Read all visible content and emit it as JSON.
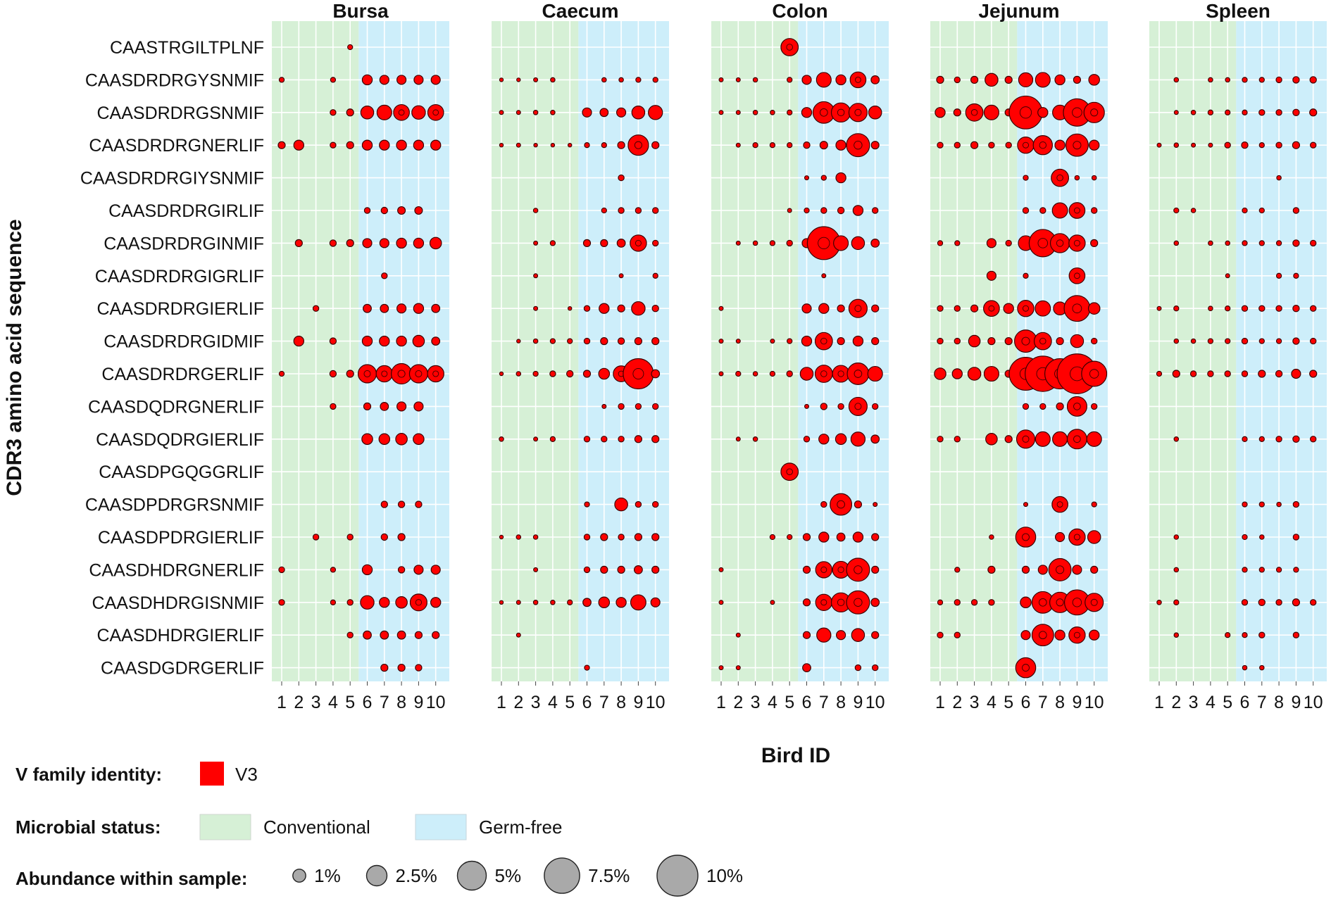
{
  "chart_data": {
    "type": "scatter",
    "subtype": "faceted bubble plot",
    "ylabel": "CDR3 amino acid sequence",
    "xlabel": "Bird ID",
    "panels": [
      "Bursa",
      "Caecum",
      "Colon",
      "Jejunum",
      "Spleen"
    ],
    "x": [
      1,
      2,
      3,
      4,
      5,
      6,
      7,
      8,
      9,
      10
    ],
    "x_tick_labels": [
      "1",
      "2",
      "3",
      "4",
      "5",
      "6",
      "7",
      "8",
      "9",
      "10"
    ],
    "sequences": [
      "CAASTRGILTPLNF",
      "CAASDRDRGYSNMIF",
      "CAASDRDRGSNMIF",
      "CAASDRDRGNERLIF",
      "CAASDRDRGIYSNMIF",
      "CAASDRDRGIRLIF",
      "CAASDRDRGINMIF",
      "CAASDRDRGIGRLIF",
      "CAASDRDRGIERLIF",
      "CAASDRDRGIDMIF",
      "CAASDRDRGERLIF",
      "CAASDQDRGNERLIF",
      "CAASDQDRGIERLIF",
      "CAASDPGQGGRLIF",
      "CAASDPDRGRSNMIF",
      "CAASDPDRGIERLIF",
      "CAASDHDRGNERLIF",
      "CAASDHDRGISNMIF",
      "CAASDHDRGIERLIF",
      "CAASDGDRGERLIF"
    ],
    "microbial_status": [
      {
        "name": "Conventional",
        "birds": [
          1,
          2,
          3,
          4,
          5
        ],
        "color": "#d6f0d6"
      },
      {
        "name": "Germ-free",
        "birds": [
          6,
          7,
          8,
          9,
          10
        ],
        "color": "#cdeefa"
      }
    ],
    "v_family": {
      "name": "V3",
      "color": "#ff0000"
    },
    "size_scale_max_percent": 10,
    "abundance_percent": {
      "Bursa": [
        [
          0,
          0,
          0,
          0,
          0.15,
          0,
          0,
          0,
          0,
          0
        ],
        [
          0.15,
          0,
          0,
          0.15,
          0,
          0.6,
          0.5,
          0.5,
          0.5,
          0.5
        ],
        [
          0,
          0,
          0,
          0.2,
          0.3,
          1.0,
          1.3,
          1.5,
          1.1,
          1.5
        ],
        [
          0.3,
          0.6,
          0,
          0.2,
          0.3,
          0.6,
          0.6,
          0.6,
          0.6,
          0.6
        ],
        [
          0,
          0,
          0,
          0,
          0,
          0,
          0,
          0,
          0,
          0
        ],
        [
          0,
          0,
          0,
          0,
          0,
          0.2,
          0.25,
          0.35,
          0.35,
          0
        ],
        [
          0,
          0.3,
          0,
          0.25,
          0.3,
          0.5,
          0.5,
          0.6,
          0.6,
          0.8
        ],
        [
          0,
          0,
          0,
          0,
          0,
          0,
          0.2,
          0,
          0,
          0
        ],
        [
          0,
          0,
          0.2,
          0,
          0,
          0.4,
          0.4,
          0.5,
          0.6,
          0.4
        ],
        [
          0,
          0.6,
          0,
          0.25,
          0,
          0.6,
          0.6,
          0.6,
          0.8,
          0.4
        ],
        [
          0.15,
          0,
          0,
          0.25,
          0.3,
          2.0,
          1.6,
          2.5,
          2.0,
          1.6
        ],
        [
          0,
          0,
          0,
          0.2,
          0,
          0.3,
          0.4,
          0.5,
          0.5,
          0
        ],
        [
          0,
          0,
          0,
          0,
          0,
          0.7,
          0.7,
          0.8,
          0.7,
          0
        ],
        [
          0,
          0,
          0,
          0,
          0,
          0,
          0,
          0,
          0,
          0
        ],
        [
          0,
          0,
          0,
          0,
          0,
          0,
          0.25,
          0.25,
          0.25,
          0
        ],
        [
          0,
          0,
          0.2,
          0,
          0.2,
          0,
          0.25,
          0.3,
          0,
          0
        ],
        [
          0.2,
          0,
          0,
          0.15,
          0,
          0.6,
          0,
          0.25,
          0.5,
          0.5
        ],
        [
          0.2,
          0,
          0,
          0.15,
          0.2,
          1.1,
          0.6,
          0.8,
          1.7,
          0.6
        ],
        [
          0,
          0,
          0,
          0,
          0.2,
          0.4,
          0.4,
          0.4,
          0.3,
          0.3
        ],
        [
          0,
          0,
          0,
          0,
          0,
          0,
          0.3,
          0.3,
          0.25,
          0
        ]
      ],
      "Caecum": [
        [
          0,
          0,
          0,
          0,
          0,
          0,
          0,
          0,
          0,
          0
        ],
        [
          0.08,
          0.08,
          0.1,
          0.12,
          0,
          0,
          0.12,
          0.12,
          0.15,
          0.15
        ],
        [
          0.1,
          0.1,
          0.12,
          0.12,
          0,
          0.5,
          0.4,
          0.5,
          1.0,
          1.2
        ],
        [
          0.08,
          0.1,
          0.08,
          0.08,
          0.08,
          0.15,
          0.15,
          0.3,
          2.5,
          0.3
        ],
        [
          0,
          0,
          0,
          0,
          0,
          0,
          0,
          0.2,
          0,
          0
        ],
        [
          0,
          0,
          0.12,
          0,
          0,
          0,
          0.15,
          0.2,
          0.2,
          0.2
        ],
        [
          0,
          0,
          0.1,
          0.15,
          0,
          0.3,
          0.3,
          0.4,
          1.6,
          0.2
        ],
        [
          0,
          0,
          0.1,
          0,
          0,
          0,
          0,
          0.1,
          0,
          0.15
        ],
        [
          0,
          0,
          0.1,
          0,
          0.08,
          0.2,
          0.6,
          0.3,
          1.1,
          0.25
        ],
        [
          0,
          0.08,
          0.12,
          0.15,
          0.15,
          0.2,
          0.3,
          0.25,
          0.3,
          0.3
        ],
        [
          0.08,
          0.12,
          0.15,
          0.2,
          0.25,
          0.3,
          0.7,
          1.5,
          5.5,
          0.4
        ],
        [
          0,
          0,
          0,
          0,
          0,
          0,
          0.1,
          0.2,
          0.2,
          0.2
        ],
        [
          0.12,
          0,
          0.1,
          0.15,
          0,
          0.2,
          0.2,
          0.2,
          0.3,
          0.3
        ],
        [
          0,
          0,
          0,
          0,
          0,
          0,
          0,
          0,
          0,
          0
        ],
        [
          0,
          0,
          0,
          0,
          0,
          0.15,
          0,
          1.0,
          0.2,
          0.2
        ],
        [
          0.08,
          0.12,
          0.12,
          0,
          0,
          0.2,
          0.3,
          0.2,
          0.3,
          0.3
        ],
        [
          0,
          0,
          0.1,
          0,
          0,
          0.2,
          0.3,
          0.3,
          0.4,
          0.3
        ],
        [
          0.08,
          0.1,
          0.12,
          0.12,
          0.15,
          0.4,
          0.7,
          0.6,
          1.4,
          0.5
        ],
        [
          0,
          0.1,
          0,
          0,
          0,
          0,
          0,
          0,
          0,
          0
        ],
        [
          0,
          0,
          0,
          0,
          0,
          0.15,
          0,
          0,
          0,
          0
        ]
      ],
      "Colon": [
        [
          0,
          0,
          0,
          0,
          1.8,
          0,
          0,
          0,
          0,
          0
        ],
        [
          0.1,
          0.1,
          0.12,
          0,
          0.15,
          0.5,
          1.3,
          0.6,
          1.5,
          0.4
        ],
        [
          0.1,
          0.1,
          0.12,
          0.12,
          0.15,
          0.6,
          2.8,
          2.2,
          2.0,
          1.0
        ],
        [
          0,
          0.1,
          0.15,
          0.15,
          0.15,
          0.25,
          0.35,
          0.6,
          3.2,
          0.35
        ],
        [
          0,
          0,
          0,
          0,
          0,
          0.1,
          0.15,
          0.6,
          0,
          0
        ],
        [
          0,
          0,
          0,
          0,
          0.1,
          0.15,
          0.2,
          0.25,
          0.6,
          0.2
        ],
        [
          0,
          0.1,
          0.12,
          0.15,
          0.2,
          0.5,
          6.5,
          1.3,
          1.0,
          0.4
        ],
        [
          0,
          0,
          0,
          0,
          0,
          0,
          0.1,
          0,
          0,
          0
        ],
        [
          0.1,
          0,
          0,
          0,
          0,
          0.5,
          0.6,
          0.3,
          2.0,
          0.3
        ],
        [
          0.1,
          0.1,
          0,
          0.1,
          0.15,
          0.6,
          1.8,
          0.3,
          0.6,
          0.3
        ],
        [
          0.1,
          0.15,
          0.12,
          0.15,
          0.2,
          1.0,
          1.8,
          1.7,
          2.8,
          1.3
        ],
        [
          0,
          0,
          0,
          0,
          0,
          0.1,
          0.25,
          0.2,
          2.0,
          0.2
        ],
        [
          0,
          0.1,
          0.12,
          0,
          0,
          0.2,
          0.6,
          0.7,
          1.2,
          0.4
        ],
        [
          0,
          0,
          0,
          0,
          1.8,
          0,
          0,
          0,
          0,
          0
        ],
        [
          0,
          0,
          0,
          0,
          0,
          0,
          0.2,
          2.8,
          0.3,
          0.1
        ],
        [
          0,
          0,
          0,
          0.15,
          0.15,
          0.3,
          0.6,
          0.4,
          0.6,
          0.3
        ],
        [
          0.1,
          0,
          0,
          0,
          0,
          0.3,
          1.6,
          1.7,
          3.2,
          0.3
        ],
        [
          0.1,
          0,
          0,
          0.1,
          0,
          0.3,
          1.6,
          2.2,
          3.2,
          0.4
        ],
        [
          0,
          0.1,
          0,
          0,
          0,
          0.3,
          1.2,
          0.5,
          1.0,
          0.3
        ],
        [
          0.1,
          0.1,
          0,
          0,
          0,
          0.4,
          0,
          0,
          0.2,
          0.2
        ]
      ],
      "Jejunum": [
        [
          0,
          0,
          0,
          0,
          0,
          0,
          0,
          0,
          0,
          0
        ],
        [
          0.3,
          0.2,
          0.3,
          1.0,
          0.3,
          1.2,
          1.3,
          0.6,
          0.3,
          0.7
        ],
        [
          0.6,
          0.3,
          1.8,
          1.3,
          0.3,
          6.5,
          0.6,
          1.3,
          4.5,
          2.5
        ],
        [
          0.2,
          0.2,
          0.3,
          0.2,
          0.2,
          1.6,
          2.2,
          0.6,
          3.0,
          0.6
        ],
        [
          0,
          0,
          0,
          0,
          0,
          0.15,
          0,
          1.8,
          0.12,
          0.12
        ],
        [
          0,
          0,
          0,
          0,
          0,
          0.2,
          0.2,
          1.4,
          1.5,
          0.2
        ],
        [
          0.15,
          0.15,
          0,
          0.5,
          0.2,
          1.3,
          4.5,
          2.2,
          1.6,
          0.3
        ],
        [
          0,
          0,
          0,
          0.5,
          0,
          0.15,
          0,
          0,
          1.5,
          0
        ],
        [
          0.2,
          0.2,
          0.3,
          1.5,
          0.6,
          1.6,
          1.4,
          1.0,
          4.0,
          0.8
        ],
        [
          0.2,
          0.2,
          0.8,
          0.3,
          0.3,
          3.0,
          1.8,
          0.3,
          1.0,
          0.2
        ],
        [
          0.8,
          0.6,
          1.0,
          1.3,
          0.3,
          6.5,
          7.5,
          5.5,
          9.5,
          3.8
        ],
        [
          0,
          0,
          0,
          0,
          0,
          0.2,
          0.2,
          0.3,
          2.3,
          0.2
        ],
        [
          0.2,
          0.2,
          0,
          0.8,
          0.3,
          2.0,
          1.3,
          1.3,
          2.3,
          1.3
        ],
        [
          0,
          0,
          0,
          0,
          0,
          0,
          0,
          0,
          0,
          0
        ],
        [
          0,
          0,
          0,
          0,
          0,
          0.1,
          0,
          1.5,
          0,
          0.15
        ],
        [
          0,
          0,
          0,
          0.12,
          0,
          2.4,
          0,
          0.5,
          1.6,
          1.0
        ],
        [
          0,
          0.15,
          0,
          0.3,
          0,
          0.3,
          0.5,
          3.0,
          0.5,
          0.3
        ],
        [
          0.15,
          0.2,
          0.2,
          0.2,
          0,
          0.7,
          2.8,
          2.5,
          3.8,
          2.0
        ],
        [
          0.2,
          0.2,
          0,
          0,
          0,
          0.5,
          2.8,
          0.6,
          1.6,
          0.6
        ],
        [
          0,
          0,
          0,
          0,
          0,
          2.4,
          0,
          0,
          0,
          0
        ]
      ],
      "Spleen": [
        [
          0,
          0,
          0,
          0,
          0,
          0,
          0,
          0,
          0,
          0
        ],
        [
          0,
          0.12,
          0,
          0.12,
          0.12,
          0.15,
          0.15,
          0.2,
          0.25,
          0.25
        ],
        [
          0,
          0.1,
          0.12,
          0.15,
          0.15,
          0.15,
          0.2,
          0.2,
          0.25,
          0.3
        ],
        [
          0.1,
          0.12,
          0.1,
          0.1,
          0.2,
          0.25,
          0.15,
          0.2,
          0.3,
          0.2
        ],
        [
          0,
          0,
          0,
          0,
          0,
          0,
          0,
          0.12,
          0,
          0
        ],
        [
          0,
          0.15,
          0.12,
          0,
          0,
          0.15,
          0.15,
          0,
          0.2,
          0
        ],
        [
          0,
          0.12,
          0,
          0.12,
          0.12,
          0.15,
          0.15,
          0.15,
          0.25,
          0.2
        ],
        [
          0,
          0,
          0,
          0,
          0.1,
          0,
          0,
          0.15,
          0.15,
          0
        ],
        [
          0.1,
          0.15,
          0,
          0.12,
          0.15,
          0.2,
          0.2,
          0.2,
          0.25,
          0.2
        ],
        [
          0,
          0.12,
          0.12,
          0.15,
          0.15,
          0.2,
          0.15,
          0.15,
          0.25,
          0.2
        ],
        [
          0.15,
          0.3,
          0.2,
          0.2,
          0.2,
          0.2,
          0.3,
          0.25,
          0.5,
          0.3
        ],
        [
          0,
          0,
          0,
          0,
          0,
          0,
          0,
          0,
          0,
          0
        ],
        [
          0,
          0.12,
          0,
          0,
          0,
          0.15,
          0.15,
          0.2,
          0.25,
          0.2
        ],
        [
          0,
          0,
          0,
          0,
          0,
          0,
          0,
          0,
          0,
          0
        ],
        [
          0,
          0,
          0,
          0,
          0,
          0.15,
          0.15,
          0.12,
          0.2,
          0
        ],
        [
          0,
          0.12,
          0,
          0,
          0,
          0.15,
          0.12,
          0,
          0.2,
          0
        ],
        [
          0,
          0.12,
          0,
          0,
          0,
          0.15,
          0.15,
          0.15,
          0.15,
          0
        ],
        [
          0.12,
          0.15,
          0,
          0,
          0,
          0.2,
          0.25,
          0.2,
          0.3,
          0.2
        ],
        [
          0,
          0.12,
          0,
          0,
          0.15,
          0.15,
          0.2,
          0,
          0.2,
          0
        ],
        [
          0,
          0,
          0,
          0,
          0,
          0.12,
          0.12,
          0,
          0,
          0
        ]
      ]
    },
    "legend": {
      "v_family_title": "V family identity:",
      "v_family_label": "V3",
      "microbial_title": "Microbial status:",
      "microbial_labels": [
        "Conventional",
        "Germ-free"
      ],
      "abundance_title": "Abundance within sample:",
      "abundance_levels": [
        1,
        2.5,
        5,
        7.5,
        10
      ],
      "abundance_labels": [
        "1%",
        "2.5%",
        "5%",
        "7.5%",
        "10%"
      ]
    },
    "colors": {
      "conventional_bg": "#d6f0d6",
      "germfree_bg": "#cdeefa",
      "grid": "#ffffff",
      "point_fill": "#ff0000",
      "point_stroke": "#3a0000",
      "legend_circle_fill": "#a9a9a9"
    }
  }
}
